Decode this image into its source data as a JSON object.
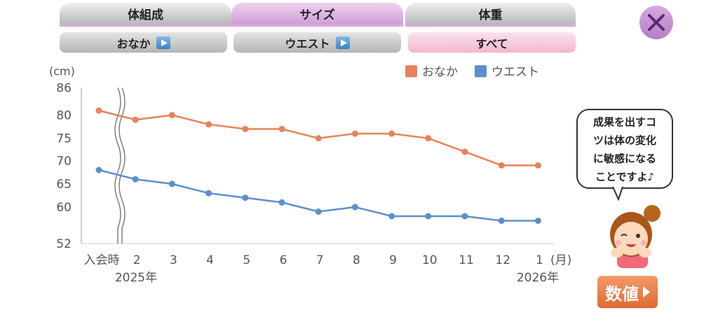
{
  "tabs": [
    {
      "label": "体組成",
      "active": false
    },
    {
      "label": "サイズ",
      "active": true
    },
    {
      "label": "体重",
      "active": false
    }
  ],
  "subtabs": [
    {
      "label": "おなか",
      "has_play": true,
      "active": false
    },
    {
      "label": "ウエスト",
      "has_play": true,
      "active": false
    },
    {
      "label": "すべて",
      "has_play": false,
      "active": true
    }
  ],
  "close_icon": "close-icon",
  "bubble": {
    "lines": [
      "成果を出すコ",
      "ツは体の変化",
      "に敏感になる",
      "ことですよ♪"
    ]
  },
  "numbers_button": "数値",
  "colors": {
    "onaka": "#e8825a",
    "waist": "#5b8fcd",
    "accent": "#b57ec6"
  },
  "chart_data": {
    "type": "line",
    "ylabel": "(cm)",
    "xunit": "(月)",
    "y_ticks": [
      "86",
      "80",
      "75",
      "70",
      "65",
      "60",
      "52"
    ],
    "x": [
      "入会時",
      "2",
      "3",
      "4",
      "5",
      "6",
      "7",
      "8",
      "9",
      "10",
      "11",
      "12",
      "1"
    ],
    "year_labels": [
      "2025年",
      "2026年"
    ],
    "axis_break": true,
    "grid": false,
    "legend_position": "top-right",
    "series": [
      {
        "name": "おなか",
        "color": "#e8825a",
        "values": [
          81,
          79,
          80,
          78,
          77,
          77,
          75,
          76,
          76,
          75,
          72,
          69,
          69
        ]
      },
      {
        "name": "ウエスト",
        "color": "#5b8fcd",
        "values": [
          68,
          66,
          65,
          63,
          62,
          61,
          59,
          60,
          58,
          58,
          58,
          57,
          57
        ]
      }
    ]
  }
}
